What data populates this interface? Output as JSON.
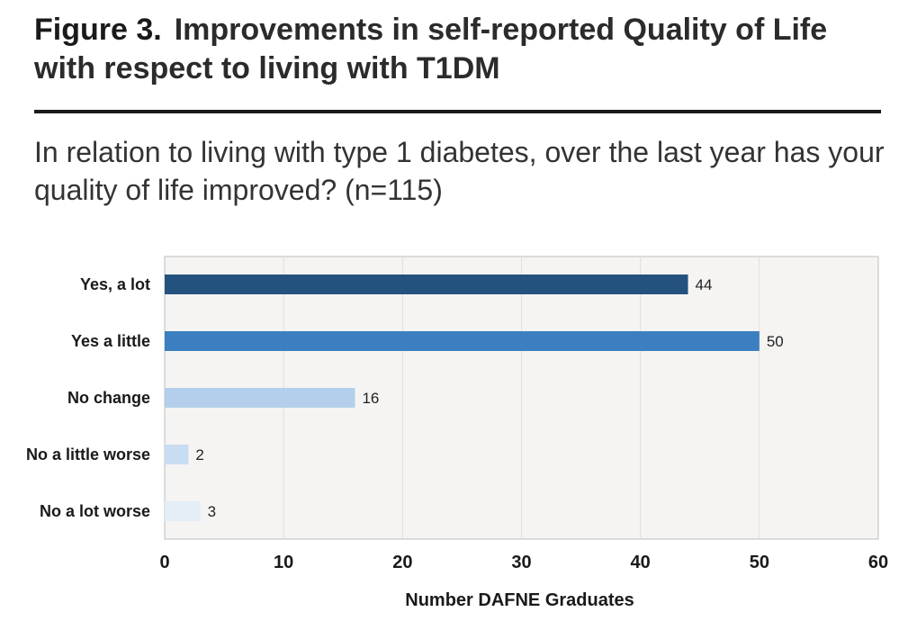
{
  "figure": {
    "label": "Figure 3.",
    "caption": "Improvements in self-reported Quality of Life with respect to living with T1DM",
    "question": "In relation to living with type 1 diabetes, over the last year has your quality of life improved? (n=115)"
  },
  "colors": {
    "plot_background": "#f5f4f3",
    "plot_border": "#bdbdbd",
    "gridline": "#e0dfdd",
    "bars": [
      "#23527f",
      "#3b7fc0",
      "#b3cfeb",
      "#c9ddf2",
      "#e5edf6"
    ]
  },
  "chart_data": {
    "type": "bar",
    "orientation": "horizontal",
    "title": "In relation to living with type 1 diabetes, over the last year has your quality of life improved? (n=115)",
    "categories": [
      "Yes, a lot",
      "Yes a little",
      "No change",
      "No a little worse",
      "No a lot worse"
    ],
    "values": [
      44,
      50,
      16,
      2,
      3
    ],
    "xlabel": "Number DAFNE Graduates",
    "ylabel": "",
    "xlim": [
      0,
      60
    ],
    "xticks": [
      0,
      10,
      20,
      30,
      40,
      50,
      60
    ],
    "grid": true,
    "legend": "none"
  }
}
